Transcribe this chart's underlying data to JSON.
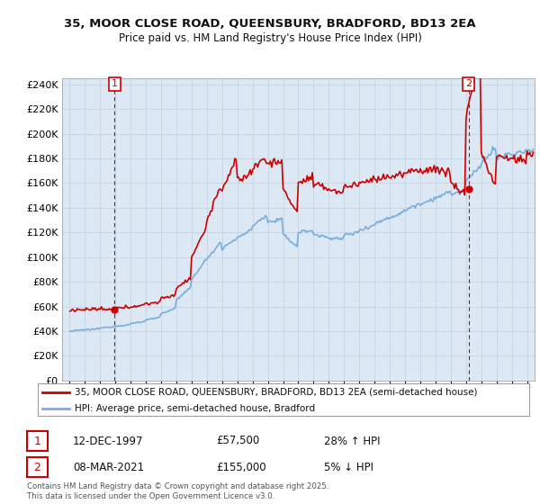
{
  "title1": "35, MOOR CLOSE ROAD, QUEENSBURY, BRADFORD, BD13 2EA",
  "title2": "Price paid vs. HM Land Registry's House Price Index (HPI)",
  "ylabel_ticks": [
    "£0",
    "£20K",
    "£40K",
    "£60K",
    "£80K",
    "£100K",
    "£120K",
    "£140K",
    "£160K",
    "£180K",
    "£200K",
    "£220K",
    "£240K"
  ],
  "ytick_vals": [
    0,
    20000,
    40000,
    60000,
    80000,
    100000,
    120000,
    140000,
    160000,
    180000,
    200000,
    220000,
    240000
  ],
  "xlim_start": 1994.5,
  "xlim_end": 2025.5,
  "ylim_min": 0,
  "ylim_max": 245000,
  "hpi_color": "#7aaddb",
  "price_color": "#cc0000",
  "marker1_year": 1997.95,
  "marker1_price": 57500,
  "marker2_year": 2021.18,
  "marker2_price": 155000,
  "legend_label1": "35, MOOR CLOSE ROAD, QUEENSBURY, BRADFORD, BD13 2EA (semi-detached house)",
  "legend_label2": "HPI: Average price, semi-detached house, Bradford",
  "annotation1_num": "1",
  "annotation1_date": "12-DEC-1997",
  "annotation1_price": "£57,500",
  "annotation1_hpi": "28% ↑ HPI",
  "annotation2_num": "2",
  "annotation2_date": "08-MAR-2021",
  "annotation2_price": "£155,000",
  "annotation2_hpi": "5% ↓ HPI",
  "footer": "Contains HM Land Registry data © Crown copyright and database right 2025.\nThis data is licensed under the Open Government Licence v3.0.",
  "chart_bg": "#dce9f5",
  "fig_bg": "#ffffff",
  "grid_color": "#c0d0e0"
}
